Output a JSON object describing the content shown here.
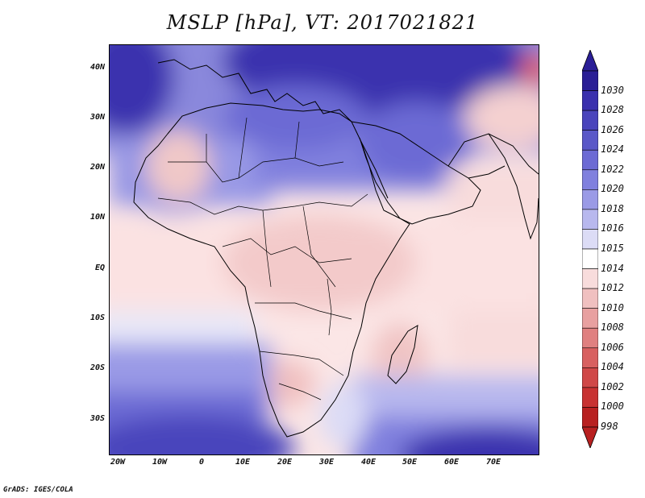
{
  "title": "MSLP [hPa], VT: 2017021821",
  "map": {
    "lon_range": [
      -23,
      80
    ],
    "lat_range": [
      -37,
      45
    ],
    "lat_labels": [
      "40N",
      "30N",
      "20N",
      "10N",
      "EQ",
      "10S",
      "20S",
      "30S"
    ],
    "lat_values": [
      40,
      30,
      20,
      10,
      0,
      -10,
      -20,
      -30
    ],
    "lon_labels": [
      "20W",
      "10W",
      "0",
      "10E",
      "20E",
      "30E",
      "40E",
      "50E",
      "60E",
      "70E"
    ],
    "lon_values": [
      -20,
      -10,
      0,
      10,
      20,
      30,
      40,
      50,
      60,
      70
    ]
  },
  "colorbar": {
    "levels": [
      "1030",
      "1028",
      "1026",
      "1024",
      "1022",
      "1020",
      "1018",
      "1016",
      "1015",
      "1014",
      "1012",
      "1010",
      "1008",
      "1006",
      "1004",
      "1002",
      "1000",
      "998"
    ],
    "colors": [
      "#2a1e96",
      "#3a30ae",
      "#4a44bc",
      "#5a58c8",
      "#6c6ad4",
      "#8080de",
      "#9a9ae6",
      "#b8b8ee",
      "#dcdcf6",
      "#ffffff",
      "#f8dcdc",
      "#f0c0c0",
      "#e8a0a0",
      "#e08080",
      "#d86060",
      "#d04848",
      "#c83232",
      "#b82020"
    ]
  },
  "credit": "GrADS: IGES/COLA"
}
